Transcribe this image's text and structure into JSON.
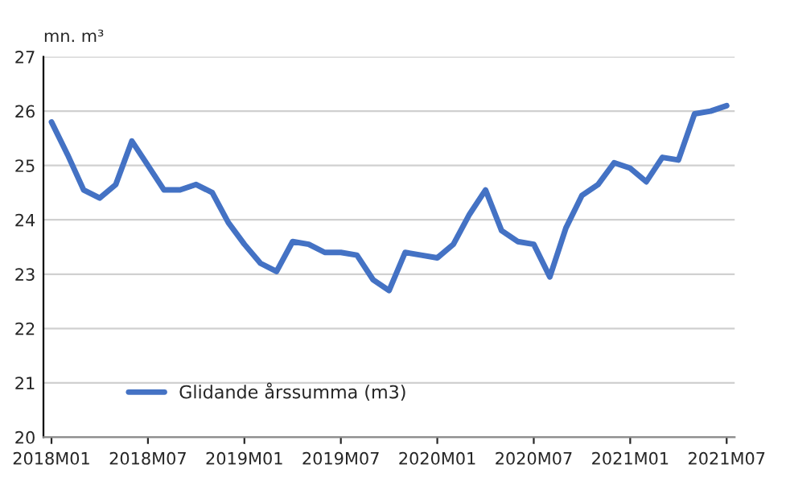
{
  "chart_data": {
    "type": "line",
    "ylabel": "mn. m³",
    "categories": [
      "2018M01",
      null,
      null,
      null,
      null,
      null,
      "2018M07",
      null,
      null,
      null,
      null,
      null,
      "2019M01",
      null,
      null,
      null,
      null,
      null,
      "2019M07",
      null,
      null,
      null,
      null,
      null,
      "2020M01",
      null,
      null,
      null,
      null,
      null,
      "2020M07",
      null,
      null,
      null,
      null,
      null,
      "2021M01",
      null,
      null,
      null,
      null,
      null,
      "2021M07"
    ],
    "series": [
      {
        "name": "Glidande årssumma (m3)",
        "color": "#4472c4",
        "values": [
          25.8,
          25.2,
          24.55,
          24.4,
          24.65,
          25.45,
          25.0,
          24.55,
          24.55,
          24.65,
          24.5,
          23.95,
          23.55,
          23.2,
          23.05,
          23.6,
          23.55,
          23.4,
          23.4,
          23.35,
          22.9,
          22.7,
          23.4,
          23.35,
          23.3,
          23.55,
          24.1,
          24.55,
          23.8,
          23.6,
          23.55,
          22.95,
          23.85,
          24.45,
          24.65,
          25.05,
          24.95,
          24.7,
          25.15,
          25.1,
          25.95,
          26.0,
          26.1
        ]
      }
    ],
    "ylim": [
      20,
      27
    ],
    "yticks": [
      20,
      21,
      22,
      23,
      24,
      25,
      26,
      27
    ],
    "grid": "y",
    "legend": "bottom left",
    "marker": "none",
    "line_style": "solid"
  }
}
